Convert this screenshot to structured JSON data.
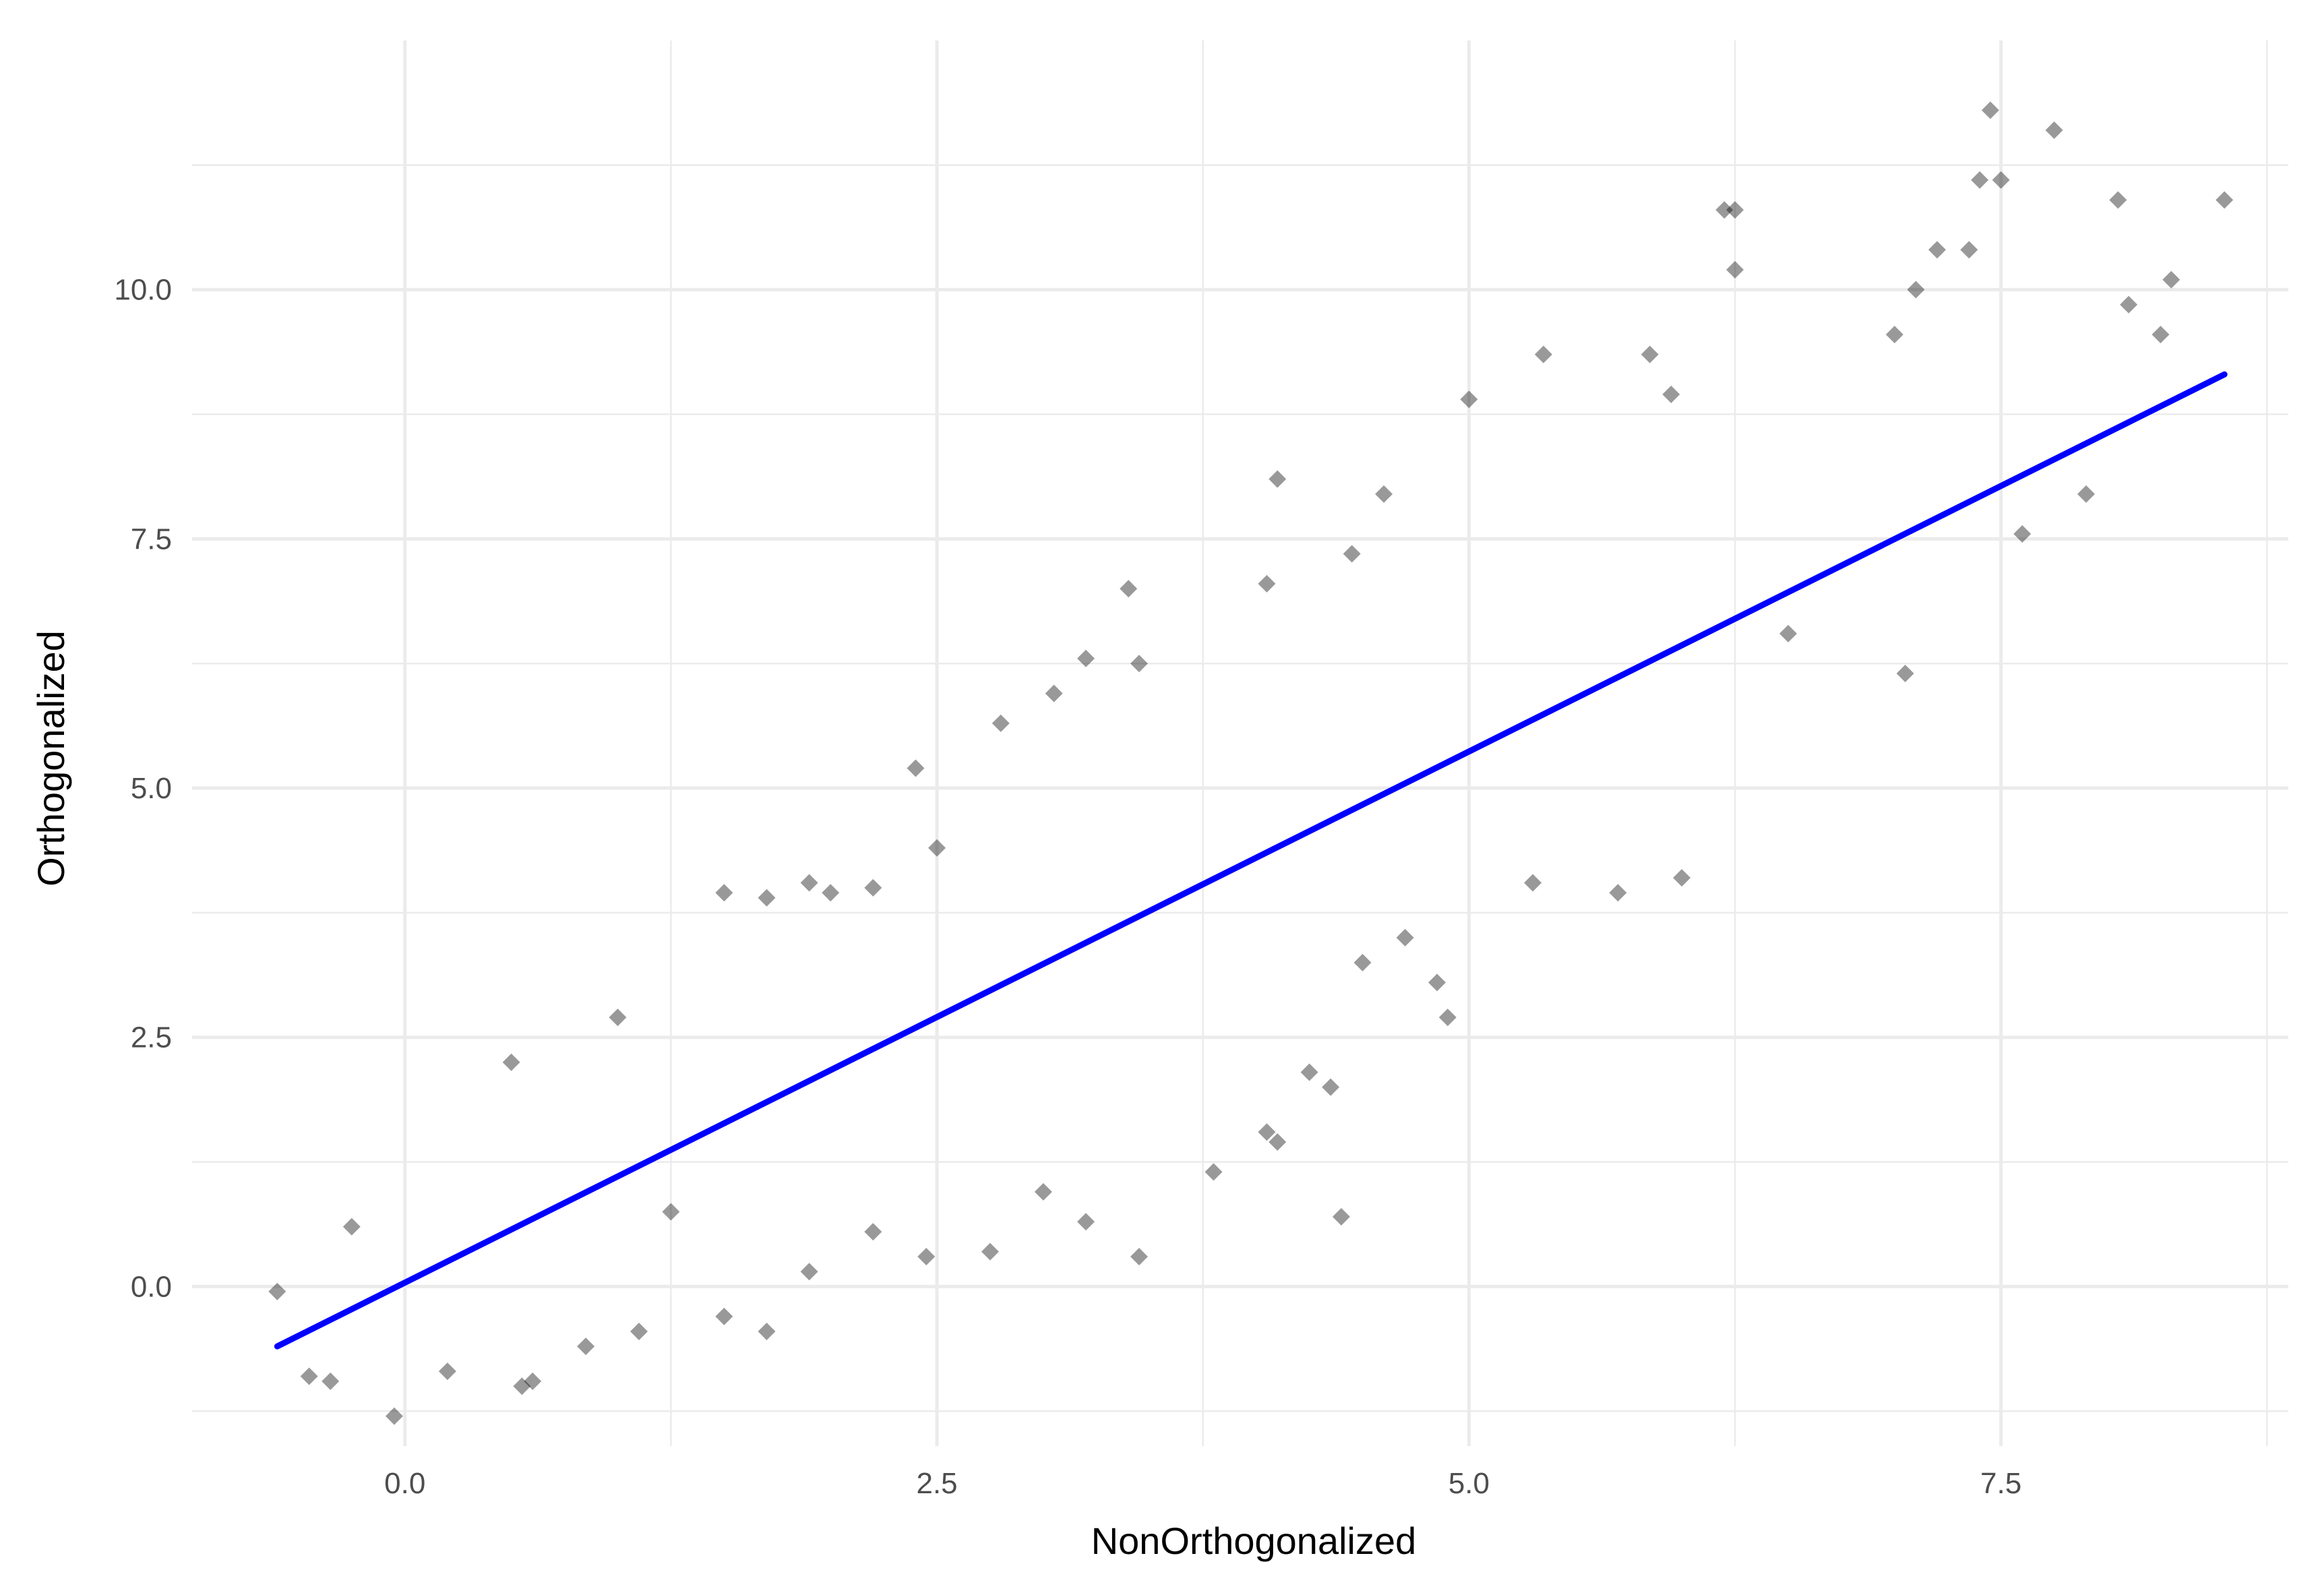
{
  "chart_data": {
    "type": "scatter",
    "title": "",
    "xlabel": "NonOrthogonalized",
    "ylabel": "Orthogonalized",
    "xlim": [
      -1.0,
      8.85
    ],
    "ylim": [
      -1.6,
      12.5
    ],
    "x_ticks": [
      0.0,
      2.5,
      5.0,
      7.5
    ],
    "x_tick_labels": [
      "0.0",
      "2.5",
      "5.0",
      "7.5"
    ],
    "y_ticks": [
      0.0,
      2.5,
      5.0,
      7.5,
      10.0
    ],
    "y_tick_labels": [
      "0.0",
      "2.5",
      "5.0",
      "7.5",
      "10.0"
    ],
    "grid": true,
    "legend": "none",
    "colors": {
      "points": "#000000",
      "fit_line": "#0000ff",
      "grid": "#ebebeb"
    },
    "series": [
      {
        "kind": "points",
        "color": "#000000",
        "opacity": 0.4,
        "marker": "diamond",
        "points": [
          [
            -0.6,
            -0.05
          ],
          [
            -0.45,
            -0.9
          ],
          [
            -0.35,
            -0.95
          ],
          [
            -0.25,
            0.6
          ],
          [
            -0.05,
            -1.3
          ],
          [
            0.5,
            2.25
          ],
          [
            1.0,
            2.7
          ],
          [
            1.5,
            3.95
          ],
          [
            1.7,
            3.9
          ],
          [
            1.9,
            4.05
          ],
          [
            2.0,
            3.95
          ],
          [
            2.2,
            4.0
          ],
          [
            2.4,
            5.2
          ],
          [
            2.5,
            4.4
          ],
          [
            2.8,
            5.65
          ],
          [
            3.05,
            5.95
          ],
          [
            3.45,
            6.25
          ],
          [
            3.4,
            7.0
          ],
          [
            3.2,
            6.3
          ],
          [
            4.05,
            7.05
          ],
          [
            4.1,
            8.1
          ],
          [
            4.45,
            7.35
          ],
          [
            4.6,
            7.95
          ],
          [
            5.0,
            8.9
          ],
          [
            5.35,
            9.35
          ],
          [
            5.85,
            9.35
          ],
          [
            5.95,
            8.95
          ],
          [
            6.2,
            10.8
          ],
          [
            6.25,
            10.8
          ],
          [
            6.25,
            10.2
          ],
          [
            7.0,
            9.55
          ],
          [
            7.1,
            10.0
          ],
          [
            7.2,
            10.4
          ],
          [
            7.35,
            10.4
          ],
          [
            7.4,
            11.1
          ],
          [
            7.45,
            11.8
          ],
          [
            7.5,
            11.1
          ],
          [
            7.75,
            11.6
          ],
          [
            8.05,
            10.9
          ],
          [
            8.3,
            10.1
          ],
          [
            8.55,
            10.9
          ],
          [
            8.25,
            9.55
          ],
          [
            8.1,
            9.85
          ],
          [
            7.9,
            7.95
          ],
          [
            7.6,
            7.55
          ],
          [
            7.05,
            6.15
          ],
          [
            6.5,
            6.55
          ],
          [
            6.0,
            4.1
          ],
          [
            5.7,
            3.95
          ],
          [
            5.3,
            4.05
          ],
          [
            4.9,
            2.7
          ],
          [
            4.85,
            3.05
          ],
          [
            4.7,
            3.5
          ],
          [
            4.5,
            3.25
          ],
          [
            4.4,
            0.7
          ],
          [
            4.35,
            2.0
          ],
          [
            4.25,
            2.15
          ],
          [
            4.1,
            1.45
          ],
          [
            4.05,
            1.55
          ],
          [
            3.8,
            1.15
          ],
          [
            3.45,
            0.3
          ],
          [
            3.2,
            0.65
          ],
          [
            3.0,
            0.95
          ],
          [
            2.75,
            0.35
          ],
          [
            2.45,
            0.3
          ],
          [
            2.2,
            0.55
          ],
          [
            1.9,
            0.15
          ],
          [
            1.7,
            -0.45
          ],
          [
            1.5,
            -0.3
          ],
          [
            1.25,
            0.75
          ],
          [
            1.1,
            -0.45
          ],
          [
            0.85,
            -0.6
          ],
          [
            0.6,
            -0.95
          ],
          [
            0.55,
            -1.0
          ],
          [
            0.2,
            -0.85
          ]
        ]
      },
      {
        "kind": "fit_line",
        "color": "#0000ff",
        "x": [
          -0.6,
          8.55
        ],
        "y": [
          -0.6,
          9.15
        ]
      }
    ]
  }
}
